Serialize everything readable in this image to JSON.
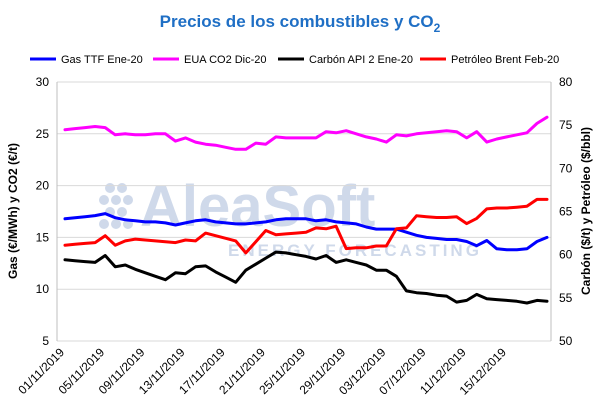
{
  "watermark": {
    "brand": "AleaSoft",
    "tagline": "ENERGY FORECASTING"
  },
  "chart_data": {
    "type": "line",
    "title": "Precios de los combustibles y CO",
    "title_sub": "2",
    "ylabel_left": "Gas (€/MWh) y CO2 (€/t)",
    "ylabel_right": "Carbón ($/t) y Petróleo ($/bbl)",
    "ylim_left": [
      5,
      30
    ],
    "ylim_right": [
      50,
      80
    ],
    "yticks_left": [
      5,
      10,
      15,
      20,
      25,
      30
    ],
    "yticks_right": [
      50,
      55,
      60,
      65,
      70,
      75,
      80
    ],
    "grid": true,
    "legend_position": "top",
    "x_tick_labels": [
      "01/11/2019",
      "05/11/2019",
      "09/11/2019",
      "13/11/2019",
      "17/11/2019",
      "21/11/2019",
      "25/11/2019",
      "29/11/2019",
      "03/12/2019",
      "07/12/2019",
      "11/12/2019",
      "15/12/2019"
    ],
    "x": [
      "01/11/2019",
      "02/11/2019",
      "03/11/2019",
      "04/11/2019",
      "05/11/2019",
      "06/11/2019",
      "07/11/2019",
      "08/11/2019",
      "09/11/2019",
      "10/11/2019",
      "11/11/2019",
      "12/11/2019",
      "13/11/2019",
      "14/11/2019",
      "15/11/2019",
      "16/11/2019",
      "17/11/2019",
      "18/11/2019",
      "19/11/2019",
      "20/11/2019",
      "21/11/2019",
      "22/11/2019",
      "23/11/2019",
      "24/11/2019",
      "25/11/2019",
      "26/11/2019",
      "27/11/2019",
      "28/11/2019",
      "29/11/2019",
      "30/11/2019",
      "01/12/2019",
      "02/12/2019",
      "03/12/2019",
      "04/12/2019",
      "05/12/2019",
      "06/12/2019",
      "07/12/2019",
      "08/12/2019",
      "09/12/2019",
      "10/12/2019",
      "11/12/2019",
      "12/12/2019",
      "13/12/2019",
      "14/12/2019",
      "15/12/2019",
      "16/12/2019",
      "17/12/2019",
      "18/12/2019",
      "19/12/2019"
    ],
    "series": [
      {
        "name": "Gas TTF Ene-20",
        "color": "#0000ff",
        "axis": "left",
        "values": [
          16.8,
          16.9,
          17.0,
          17.1,
          17.3,
          16.9,
          16.7,
          16.6,
          16.5,
          16.5,
          16.4,
          16.2,
          16.4,
          16.6,
          16.7,
          16.5,
          16.4,
          16.3,
          16.3,
          16.4,
          16.5,
          16.7,
          16.8,
          16.8,
          16.8,
          16.6,
          16.7,
          16.5,
          16.4,
          16.3,
          16.0,
          15.8,
          15.8,
          15.8,
          15.5,
          15.2,
          15.0,
          14.9,
          14.8,
          14.8,
          14.6,
          14.2,
          14.7,
          13.9,
          13.8,
          13.8,
          13.9,
          14.6,
          15.0
        ]
      },
      {
        "name": "EUA CO2 Dic-20",
        "color": "#ff00ff",
        "axis": "left",
        "values": [
          25.4,
          25.5,
          25.6,
          25.7,
          25.6,
          24.9,
          25.0,
          24.9,
          24.9,
          25.0,
          25.0,
          24.3,
          24.6,
          24.2,
          24.0,
          23.9,
          23.7,
          23.5,
          23.5,
          24.1,
          24.0,
          24.7,
          24.6,
          24.6,
          24.6,
          24.6,
          25.2,
          25.1,
          25.3,
          25.0,
          24.7,
          24.5,
          24.2,
          24.9,
          24.8,
          25.0,
          25.1,
          25.2,
          25.3,
          25.2,
          24.6,
          25.2,
          24.2,
          24.5,
          24.7,
          24.9,
          25.1,
          26.0,
          26.6
        ]
      },
      {
        "name": "Carbón API 2 Ene-20",
        "color": "#000000",
        "axis": "right",
        "values": [
          59.4,
          59.3,
          59.2,
          59.1,
          59.9,
          58.6,
          58.8,
          58.3,
          57.9,
          57.5,
          57.1,
          57.9,
          57.8,
          58.6,
          58.7,
          58.0,
          57.4,
          56.8,
          58.2,
          58.9,
          59.6,
          60.3,
          60.2,
          60.0,
          59.8,
          59.5,
          59.9,
          59.1,
          59.4,
          59.1,
          58.8,
          58.2,
          58.2,
          57.5,
          55.8,
          55.6,
          55.5,
          55.3,
          55.2,
          54.5,
          54.7,
          55.4,
          54.9,
          54.8,
          54.7,
          54.6,
          54.4,
          54.7,
          54.6
        ]
      },
      {
        "name": "Petróleo Brent Feb-20",
        "color": "#ff0000",
        "axis": "right",
        "values": [
          61.1,
          61.2,
          61.3,
          61.4,
          62.2,
          61.1,
          61.6,
          61.8,
          61.7,
          61.6,
          61.5,
          61.4,
          61.7,
          61.6,
          62.5,
          62.2,
          61.9,
          61.6,
          60.2,
          61.5,
          62.8,
          62.3,
          62.4,
          62.5,
          62.6,
          63.1,
          63.0,
          63.3,
          60.7,
          60.8,
          60.8,
          61.0,
          61.0,
          63.0,
          63.1,
          64.5,
          64.4,
          64.3,
          64.3,
          64.4,
          63.6,
          64.2,
          65.3,
          65.4,
          65.4,
          65.5,
          65.6,
          66.4,
          66.4
        ]
      }
    ]
  }
}
